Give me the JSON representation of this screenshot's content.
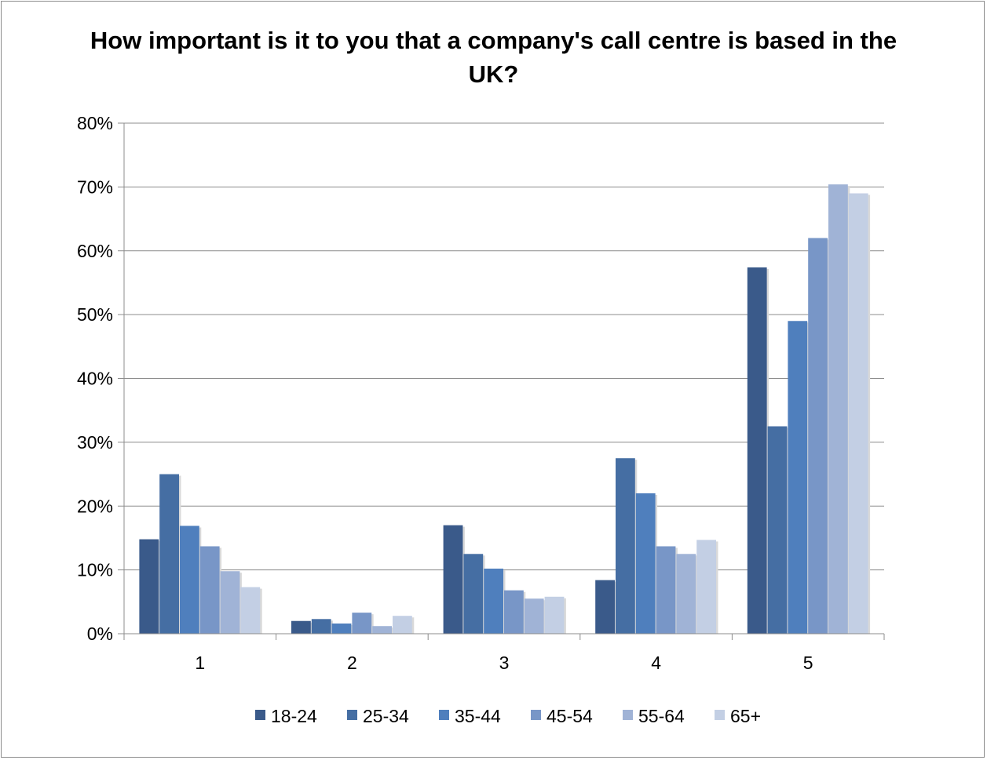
{
  "chart_data": {
    "type": "bar",
    "title": "How important is it to you that a company's call centre is based in the UK?",
    "categories": [
      "1",
      "2",
      "3",
      "4",
      "5"
    ],
    "ylim": [
      0,
      80
    ],
    "yticks": [
      "0%",
      "10%",
      "20%",
      "30%",
      "40%",
      "50%",
      "60%",
      "70%",
      "80%"
    ],
    "grid": true,
    "legend_position": "bottom",
    "series": [
      {
        "name": "18-24",
        "color": "#3a5a8a",
        "values": [
          14.8,
          2.0,
          17.0,
          8.4,
          57.4
        ]
      },
      {
        "name": "25-34",
        "color": "#456ea3",
        "values": [
          25.0,
          2.3,
          12.5,
          27.5,
          32.5
        ]
      },
      {
        "name": "35-44",
        "color": "#4f7fbd",
        "values": [
          16.9,
          1.6,
          10.2,
          22.0,
          49.0
        ]
      },
      {
        "name": "45-54",
        "color": "#7896c7",
        "values": [
          13.7,
          3.3,
          6.8,
          13.7,
          62.0
        ]
      },
      {
        "name": "55-64",
        "color": "#a0b3d6",
        "values": [
          9.8,
          1.2,
          5.5,
          12.5,
          70.4
        ]
      },
      {
        "name": "65+",
        "color": "#c3cfe4",
        "values": [
          7.3,
          2.8,
          5.8,
          14.7,
          69.0
        ]
      }
    ]
  }
}
